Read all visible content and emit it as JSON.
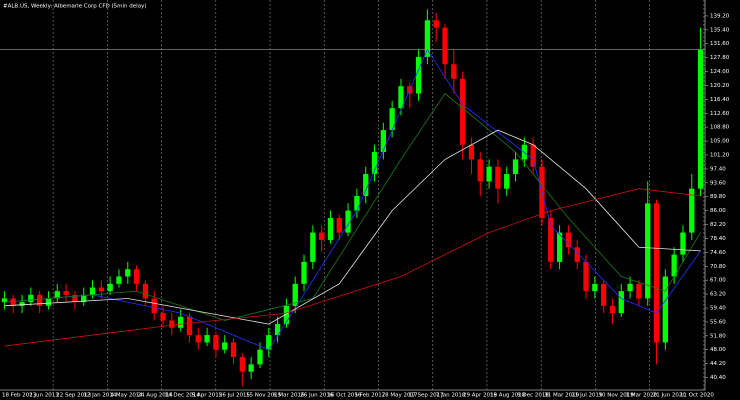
{
  "chart_data": {
    "type": "candlestick",
    "title": "#ALB.US, Weekly:  Albemarle Corp CFD (5min delay)",
    "bull_color": "#00ff00",
    "bear_color": "#ff0000",
    "ylim": [
      37,
      143
    ],
    "yticks": [
      {
        "value": 40.4,
        "label": "40.40"
      },
      {
        "value": 44.2,
        "label": "44.20"
      },
      {
        "value": 48,
        "label": "48.00"
      },
      {
        "value": 51.8,
        "label": "51.80"
      },
      {
        "value": 55.6,
        "label": "55.60"
      },
      {
        "value": 59.4,
        "label": "59.40"
      },
      {
        "value": 63.2,
        "label": "63.20"
      },
      {
        "value": 67,
        "label": "67.00"
      },
      {
        "value": 70.8,
        "label": "70.80"
      },
      {
        "value": 74.6,
        "label": "74.60"
      },
      {
        "value": 78.4,
        "label": "78.40"
      },
      {
        "value": 82.2,
        "label": "82.20"
      },
      {
        "value": 86,
        "label": "86.00"
      },
      {
        "value": 89.8,
        "label": "89.80"
      },
      {
        "value": 93.6,
        "label": "93.60"
      },
      {
        "value": 97.4,
        "label": "97.40"
      },
      {
        "value": 101.2,
        "label": "101.20"
      },
      {
        "value": 105,
        "label": "105.00"
      },
      {
        "value": 108.8,
        "label": "108.80"
      },
      {
        "value": 112.6,
        "label": "112.60"
      },
      {
        "value": 116.4,
        "label": "116.40"
      },
      {
        "value": 120.2,
        "label": "120.20"
      },
      {
        "value": 124,
        "label": "124.00"
      },
      {
        "value": 127.8,
        "label": "127.80"
      },
      {
        "value": 131.6,
        "label": "131.60"
      },
      {
        "value": 135.4,
        "label": "135.40"
      },
      {
        "value": 139.2,
        "label": "139.20"
      }
    ],
    "price_line": 130,
    "x_labels": [
      "18 Feb 2013",
      "2 Jun 2013",
      "22 Sep 2013",
      "12 Jan 2014",
      "4 May 2014",
      "24 Aug 2014",
      "14 Dec 2014",
      "5 Apr 2015",
      "26 Jul 2015",
      "15 Nov 2015",
      "6 Mar 2016",
      "26 Jun 2016",
      "16 Oct 2016",
      "5 Feb 2017",
      "28 May 2017",
      "17 Sep 2017",
      "7 Jan 2018",
      "29 Apr 2018",
      "19 Aug 2018",
      "9 Dec 2018",
      "31 Mar 2019",
      "21 Jul 2019",
      "10 Nov 2019",
      "1 Mar 2020",
      "21 Jun 2020",
      "11 Oct 2020"
    ],
    "xgrid": true,
    "ohlc": [
      [
        61,
        64,
        59,
        62
      ],
      [
        62,
        63,
        58,
        60
      ],
      [
        60,
        63,
        58,
        61
      ],
      [
        61,
        65,
        60,
        63
      ],
      [
        63,
        64,
        58,
        60
      ],
      [
        60,
        64,
        59,
        62
      ],
      [
        62,
        66,
        61,
        64
      ],
      [
        64,
        66,
        61,
        63
      ],
      [
        63,
        64,
        59,
        61
      ],
      [
        61,
        65,
        60,
        63
      ],
      [
        63,
        67,
        62,
        65
      ],
      [
        65,
        67,
        62,
        64
      ],
      [
        64,
        68,
        63,
        66
      ],
      [
        66,
        70,
        65,
        68
      ],
      [
        68,
        72,
        66,
        70
      ],
      [
        70,
        71,
        64,
        66
      ],
      [
        66,
        67,
        60,
        62
      ],
      [
        62,
        64,
        56,
        58
      ],
      [
        58,
        60,
        54,
        56
      ],
      [
        56,
        58,
        52,
        54
      ],
      [
        54,
        59,
        53,
        57
      ],
      [
        57,
        58,
        50,
        52
      ],
      [
        52,
        54,
        48,
        50
      ],
      [
        50,
        54,
        49,
        52
      ],
      [
        52,
        53,
        46,
        48
      ],
      [
        48,
        52,
        47,
        50
      ],
      [
        50,
        51,
        44,
        46
      ],
      [
        46,
        47,
        38,
        42
      ],
      [
        42,
        46,
        40,
        44
      ],
      [
        44,
        50,
        43,
        48
      ],
      [
        48,
        54,
        46,
        52
      ],
      [
        52,
        57,
        50,
        55
      ],
      [
        55,
        62,
        54,
        60
      ],
      [
        60,
        68,
        58,
        66
      ],
      [
        66,
        74,
        64,
        72
      ],
      [
        72,
        82,
        70,
        80
      ],
      [
        80,
        82,
        75,
        78
      ],
      [
        78,
        86,
        77,
        84
      ],
      [
        84,
        85,
        78,
        80
      ],
      [
        80,
        88,
        79,
        86
      ],
      [
        86,
        92,
        84,
        90
      ],
      [
        90,
        98,
        88,
        96
      ],
      [
        96,
        104,
        94,
        102
      ],
      [
        102,
        110,
        100,
        108
      ],
      [
        108,
        116,
        106,
        114
      ],
      [
        114,
        122,
        112,
        120
      ],
      [
        120,
        121,
        114,
        118
      ],
      [
        118,
        130,
        116,
        128
      ],
      [
        128,
        141,
        126,
        138
      ],
      [
        138,
        140,
        132,
        136
      ],
      [
        136,
        137,
        122,
        126
      ],
      [
        126,
        130,
        118,
        122
      ],
      [
        122,
        124,
        100,
        104
      ],
      [
        104,
        106,
        96,
        100
      ],
      [
        100,
        102,
        90,
        94
      ],
      [
        94,
        100,
        92,
        98
      ],
      [
        98,
        100,
        88,
        92
      ],
      [
        92,
        98,
        90,
        96
      ],
      [
        96,
        102,
        94,
        100
      ],
      [
        100,
        106,
        98,
        104
      ],
      [
        104,
        106,
        96,
        98
      ],
      [
        98,
        100,
        82,
        84
      ],
      [
        84,
        86,
        70,
        72
      ],
      [
        72,
        82,
        70,
        80
      ],
      [
        80,
        82,
        74,
        76
      ],
      [
        76,
        78,
        70,
        72
      ],
      [
        72,
        74,
        62,
        64
      ],
      [
        64,
        68,
        62,
        66
      ],
      [
        66,
        67,
        58,
        60
      ],
      [
        60,
        62,
        55,
        58
      ],
      [
        58,
        66,
        57,
        64
      ],
      [
        64,
        68,
        62,
        66
      ],
      [
        66,
        67,
        60,
        62
      ],
      [
        62,
        94,
        60,
        88
      ],
      [
        88,
        89,
        44,
        50
      ],
      [
        50,
        70,
        48,
        68
      ],
      [
        68,
        76,
        66,
        74
      ],
      [
        74,
        82,
        72,
        80
      ],
      [
        80,
        96,
        78,
        92
      ],
      [
        92,
        136,
        90,
        130
      ]
    ],
    "series": [
      {
        "color": "#2233ff",
        "x": [
          0,
          10,
          20,
          30,
          40,
          48,
          52,
          60,
          62,
          70,
          74,
          79
        ],
        "values": [
          61,
          63,
          58,
          48,
          86,
          130,
          115,
          100,
          82,
          62,
          58,
          75
        ]
      },
      {
        "color": "#1a7a1a",
        "x": [
          0,
          15,
          25,
          35,
          45,
          50,
          58,
          64,
          70,
          75,
          79
        ],
        "values": [
          61,
          64,
          56,
          62,
          100,
          118,
          102,
          84,
          68,
          64,
          80
        ]
      },
      {
        "color": "#e8e8e8",
        "x": [
          0,
          14,
          30,
          38,
          44,
          50,
          56,
          60,
          66,
          72,
          79
        ],
        "values": [
          60,
          62,
          55,
          66,
          86,
          100,
          108,
          104,
          92,
          76,
          75
        ]
      },
      {
        "color": "#cc1111",
        "x": [
          0,
          20,
          32,
          45,
          55,
          62,
          72,
          79
        ],
        "values": [
          49,
          55,
          58,
          68,
          80,
          86,
          92,
          90
        ]
      }
    ]
  }
}
